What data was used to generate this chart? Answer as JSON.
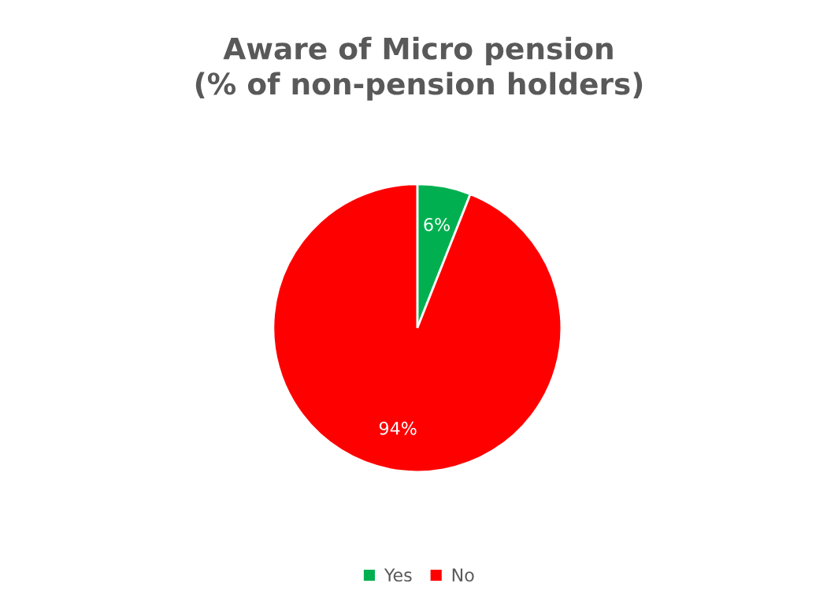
{
  "chart_data": {
    "type": "pie",
    "title": "Aware of Micro pension\n(% of non-pension holders)",
    "categories": [
      "Yes",
      "No"
    ],
    "values": [
      6,
      94
    ],
    "colors": [
      "#00b050",
      "#ff0000"
    ],
    "value_labels": [
      "6%",
      "94%"
    ],
    "legend": "bottom"
  }
}
